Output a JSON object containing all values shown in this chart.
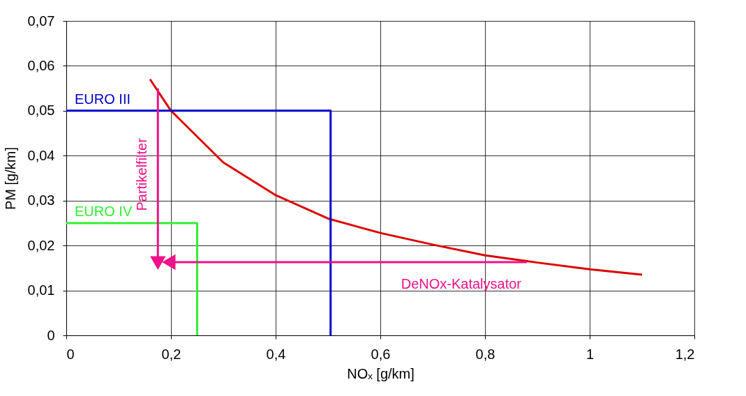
{
  "chart_data": {
    "type": "line",
    "xlabel": "NOₓ [g/km]",
    "ylabel": "PM [g/km]",
    "xlim": [
      0,
      1.2
    ],
    "ylim": [
      0,
      0.07
    ],
    "xticks": [
      0,
      {
        "value": 0.2,
        "label": "0,2"
      },
      {
        "value": 0.4,
        "label": "0,4"
      },
      {
        "value": 0.6,
        "label": "0,6"
      },
      {
        "value": 0.8,
        "label": "0,8"
      },
      1,
      {
        "value": 1.2,
        "label": "1,2"
      }
    ],
    "yticks": [
      0,
      {
        "value": 0.01,
        "label": "0,01"
      },
      {
        "value": 0.02,
        "label": "0,02"
      },
      {
        "value": 0.03,
        "label": "0,03"
      },
      {
        "value": 0.04,
        "label": "0,04"
      },
      {
        "value": 0.05,
        "label": "0,05"
      },
      {
        "value": 0.06,
        "label": "0,06"
      },
      {
        "value": 0.07,
        "label": "0,07"
      }
    ],
    "grid": true,
    "series": [
      {
        "color": "#dd0000",
        "x": [
          0.16,
          0.2,
          0.3,
          0.4,
          0.5,
          0.6,
          0.7,
          0.8,
          0.9,
          1.0,
          1.1
        ],
        "values": [
          0.057,
          0.05,
          0.0385,
          0.0312,
          0.026,
          0.0228,
          0.0202,
          0.0178,
          0.0162,
          0.0147,
          0.0135
        ]
      },
      {
        "name": "EURO III",
        "color": "#0000cc",
        "x": [
          0,
          0.505,
          0.505
        ],
        "values": [
          0.05,
          0.05,
          0
        ]
      },
      {
        "name": "EURO IV",
        "color": "#33ee33",
        "x": [
          0,
          0.25,
          0.25
        ],
        "values": [
          0.025,
          0.025,
          0
        ]
      },
      {
        "color": "#ee1188",
        "x": [
          0.175,
          0.175
        ],
        "values": [
          0.055,
          0.0166
        ]
      },
      {
        "color": "#ee1188",
        "x": [
          0.88,
          0.2
        ],
        "values": [
          0.0163,
          0.0163
        ]
      }
    ],
    "annotations": [
      "Partikelfilter",
      "DeNOx-Katalysator"
    ]
  }
}
